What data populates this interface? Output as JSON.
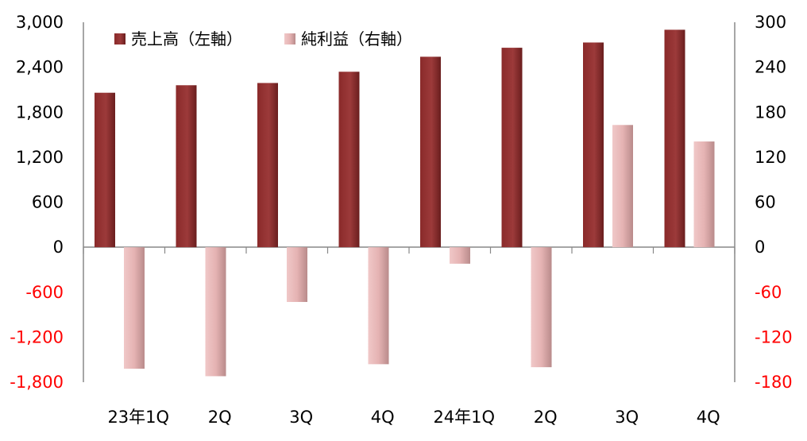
{
  "chart_data": {
    "type": "bar",
    "categories": [
      "23年1Q",
      "2Q",
      "3Q",
      "4Q",
      "24年1Q",
      "2Q",
      "3Q",
      "4Q"
    ],
    "series": [
      {
        "name": "売上高（左軸）",
        "axis": "left",
        "color": "#973535",
        "values": [
          2060,
          2160,
          2190,
          2340,
          2540,
          2660,
          2730,
          2900
        ]
      },
      {
        "name": "純利益（右軸）",
        "axis": "right",
        "color": "#e5b6b6",
        "values": [
          -162,
          -172,
          -73,
          -156,
          -22,
          -160,
          163,
          141
        ]
      }
    ],
    "y_left": {
      "ylim": [
        -1800,
        3000
      ],
      "ticks": [
        "3,000",
        "2,400",
        "1,800",
        "1,200",
        "600",
        "0",
        "-600",
        "-1,200",
        "-1,800"
      ],
      "tick_values": [
        3000,
        2400,
        1800,
        1200,
        600,
        0,
        -600,
        -1200,
        -1800
      ]
    },
    "y_right": {
      "ylim": [
        -180,
        300
      ],
      "ticks": [
        "300",
        "240",
        "180",
        "120",
        "60",
        "0",
        "-60",
        "-120",
        "-180"
      ],
      "tick_values": [
        300,
        240,
        180,
        120,
        60,
        0,
        -60,
        -120,
        -180
      ]
    },
    "negative_tick_color": "#ff0000",
    "positive_tick_color": "#000000",
    "grid": false,
    "legend_position": "top-left",
    "xlabel": "",
    "ylabel": "",
    "title": ""
  }
}
